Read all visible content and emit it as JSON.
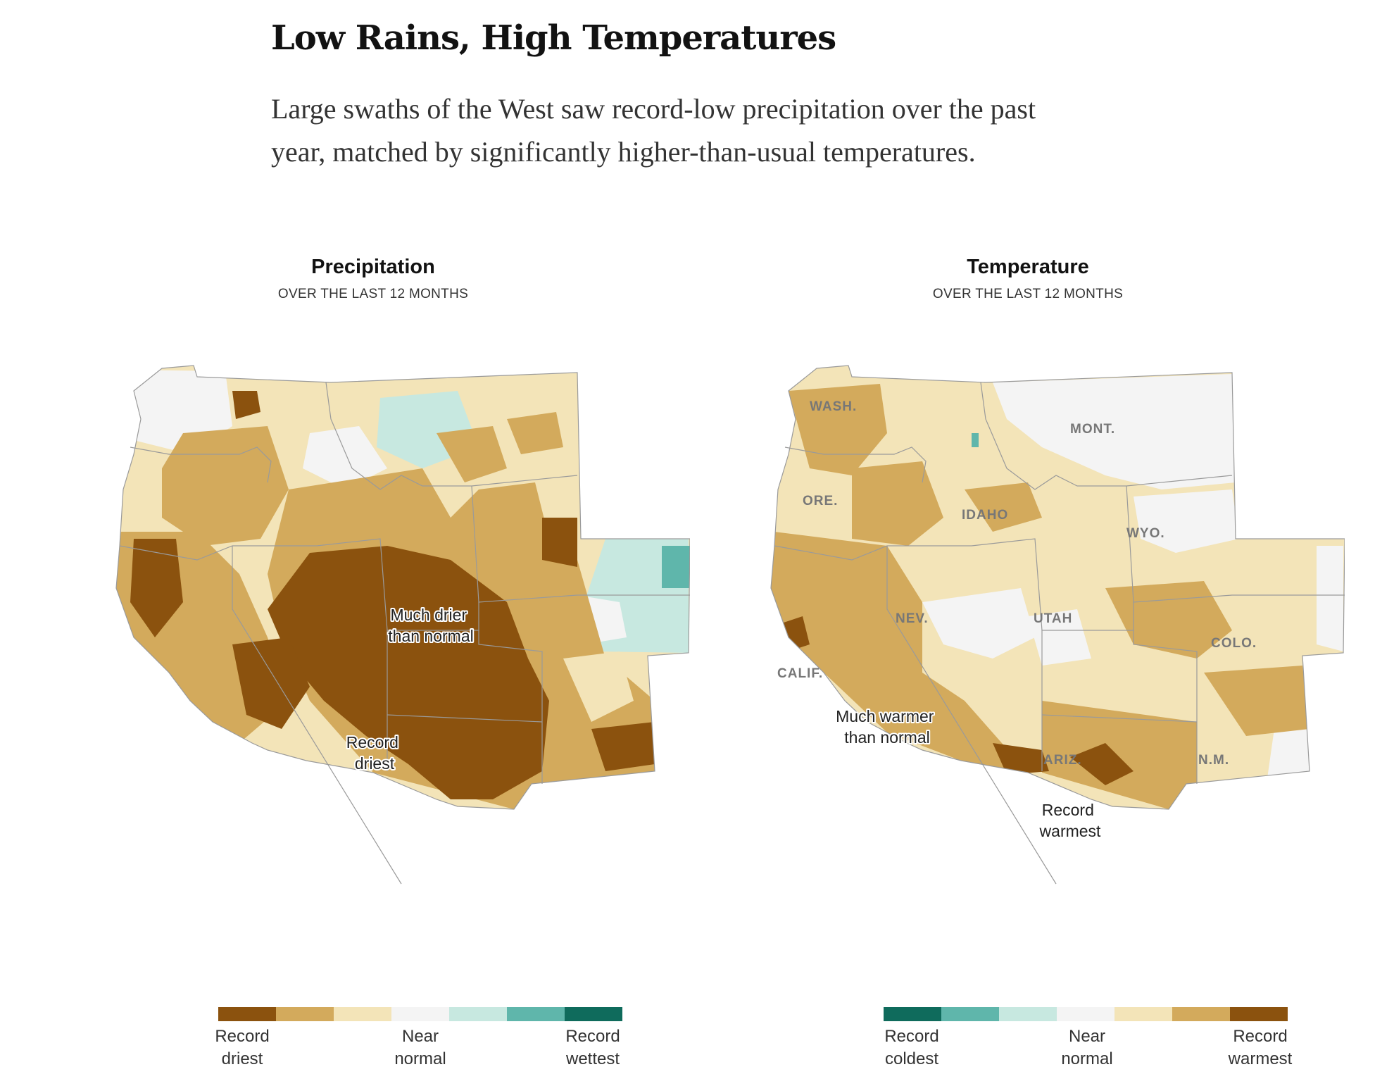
{
  "headline": "Low Rains, High Temperatures",
  "dek": "Large swaths of the West saw record-low precipitation over the past year, matched by significantly higher-than-usual temperatures.",
  "maps": [
    {
      "title": "Precipitation",
      "subtitle": "OVER THE LAST 12 MONTHS",
      "annotations": [
        {
          "text": "Much drier\nthan normal"
        },
        {
          "text": "Record\ndriest"
        }
      ],
      "state_labels": [],
      "legend": {
        "colors": [
          "#8b520e",
          "#d3aa5c",
          "#f3e4b8",
          "#f4f4f4",
          "#c7e8e0",
          "#5fb6ab",
          "#0f6b5c"
        ],
        "labels": [
          "Record\ndriest",
          "Near\nnormal",
          "Record\nwettest"
        ]
      }
    },
    {
      "title": "Temperature",
      "subtitle": "OVER THE LAST 12 MONTHS",
      "annotations": [
        {
          "text": "Much warmer\nthan normal"
        },
        {
          "text": "Record\nwarmest"
        }
      ],
      "state_labels": [
        "WASH.",
        "MONT.",
        "ORE.",
        "IDAHO",
        "WYO.",
        "NEV.",
        "UTAH",
        "COLO.",
        "CALIF.",
        "ARIZ.",
        "N.M."
      ],
      "legend": {
        "colors": [
          "#0f6b5c",
          "#5fb6ab",
          "#c7e8e0",
          "#f4f4f4",
          "#f3e4b8",
          "#d3aa5c",
          "#8b520e"
        ],
        "labels": [
          "Record\ncoldest",
          "Near\nnormal",
          "Record\nwarmest"
        ]
      }
    }
  ]
}
